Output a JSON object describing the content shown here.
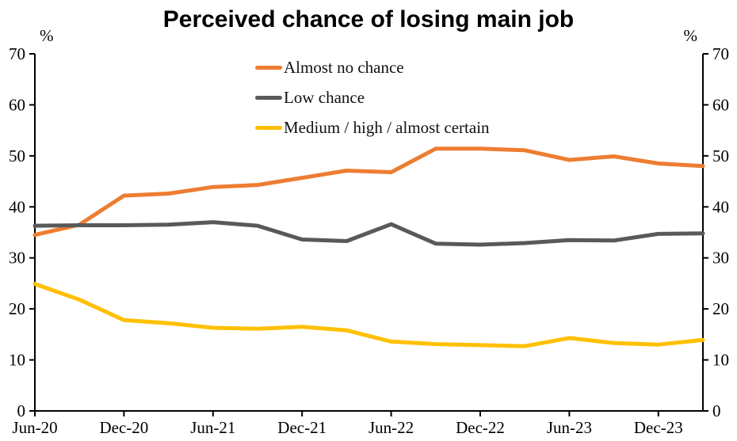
{
  "chart": {
    "title": "Perceived chance of losing main job",
    "left_axis_unit": "%",
    "right_axis_unit": "%"
  },
  "chart_data": {
    "type": "line",
    "title": "Perceived chance of losing main job",
    "x": [
      "Jun-20",
      "Sep-20",
      "Dec-20",
      "Mar-21",
      "Jun-21",
      "Sep-21",
      "Dec-21",
      "Mar-22",
      "Jun-22",
      "Sep-22",
      "Dec-22",
      "Mar-23",
      "Jun-23",
      "Sep-23",
      "Dec-23",
      "Mar-24"
    ],
    "x_tick_labels": [
      "Jun-20",
      "Dec-20",
      "Jun-21",
      "Dec-21",
      "Jun-22",
      "Dec-22",
      "Jun-23",
      "Dec-23"
    ],
    "ylim": [
      0,
      70
    ],
    "y_tick_step": 10,
    "y_tick_labels": [
      "0",
      "10",
      "20",
      "30",
      "40",
      "50",
      "60",
      "70"
    ],
    "ylabel_left": "%",
    "ylabel_right": "%",
    "grid": false,
    "legend_position": "top-center-stacked",
    "axis_color": "#000000",
    "series": [
      {
        "name": "Almost no chance",
        "color": "#ED7D31",
        "values": [
          34.5,
          36.5,
          42.2,
          42.6,
          43.9,
          44.3,
          45.7,
          47.1,
          46.8,
          51.4,
          51.4,
          51.1,
          49.2,
          49.9,
          48.5,
          48.0
        ]
      },
      {
        "name": "Low chance",
        "color": "#595959",
        "values": [
          36.3,
          36.4,
          36.4,
          36.5,
          37.0,
          36.3,
          33.6,
          33.3,
          36.6,
          32.8,
          32.6,
          32.9,
          33.5,
          33.4,
          34.7,
          34.8
        ]
      },
      {
        "name": "Medium / high / almost certain",
        "color": "#FFC000",
        "values": [
          24.9,
          21.8,
          17.8,
          17.2,
          16.3,
          16.1,
          16.5,
          15.8,
          13.6,
          13.1,
          12.9,
          12.7,
          14.3,
          13.3,
          13.0,
          13.9
        ]
      }
    ]
  }
}
